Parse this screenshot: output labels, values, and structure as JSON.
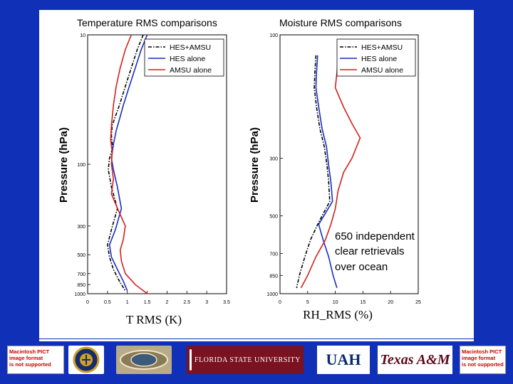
{
  "left_chart": {
    "type": "line",
    "title": "Temperature RMS comparisons",
    "xlabel": "T  RMS (K)",
    "ylabel": "Pressure (hPa)",
    "xlim": [
      0,
      3.5
    ],
    "ylim": [
      10,
      1000
    ],
    "y_scale": "log",
    "x_ticks": [
      "0",
      "0.5",
      "1",
      "1.5",
      "2",
      "2.5",
      "3",
      "3.5"
    ],
    "y_ticks": [
      "10",
      "100",
      "300",
      "500",
      "700",
      "850",
      "1000"
    ],
    "y_tick_values": [
      10,
      100,
      300,
      500,
      700,
      850,
      1000
    ],
    "legend_position": "top-right",
    "series": [
      {
        "name": "HES+AMSU",
        "color": "#000000",
        "dash": "dashdot",
        "x": [
          1.4,
          1.25,
          1.1,
          0.95,
          0.8,
          0.62,
          0.6,
          0.63,
          0.55,
          0.52,
          0.6,
          0.75,
          0.6,
          0.5,
          0.55,
          0.65,
          0.8,
          0.95
        ],
        "p": [
          10,
          13,
          18,
          25,
          35,
          50,
          60,
          75,
          90,
          110,
          150,
          220,
          320,
          420,
          520,
          650,
          800,
          950
        ]
      },
      {
        "name": "HES alone",
        "color": "#1a2fc0",
        "dash": "solid",
        "x": [
          1.5,
          1.35,
          1.2,
          1.05,
          0.9,
          0.8,
          0.72,
          0.65,
          0.6,
          0.65,
          0.75,
          0.85,
          0.7,
          0.55,
          0.6,
          0.75,
          0.9,
          1.0
        ],
        "p": [
          10,
          13,
          18,
          25,
          35,
          45,
          55,
          70,
          90,
          110,
          150,
          220,
          320,
          420,
          520,
          650,
          800,
          950
        ]
      },
      {
        "name": "AMSU alone",
        "color": "#d42020",
        "dash": "solid",
        "x": [
          1.1,
          0.95,
          0.82,
          0.72,
          0.65,
          0.6,
          0.58,
          0.62,
          0.6,
          0.65,
          0.6,
          0.78,
          0.95,
          0.9,
          0.82,
          0.85,
          0.95,
          1.2,
          1.5
        ],
        "p": [
          10,
          13,
          18,
          25,
          35,
          50,
          65,
          80,
          100,
          130,
          170,
          230,
          300,
          380,
          460,
          560,
          700,
          850,
          1000
        ]
      }
    ]
  },
  "right_chart": {
    "type": "line",
    "title": "Moisture RMS comparisons",
    "xlabel": "RH_RMS (%)",
    "ylabel": "Pressure (hPa)",
    "xlim": [
      0,
      25
    ],
    "ylim": [
      100,
      1000
    ],
    "y_scale": "log",
    "x_ticks": [
      "0",
      "5",
      "10",
      "15",
      "20",
      "25"
    ],
    "y_ticks": [
      "100",
      "300",
      "500",
      "700",
      "850",
      "1000"
    ],
    "y_tick_values": [
      100,
      300,
      500,
      700,
      850,
      1000
    ],
    "legend_position": "top-right",
    "annotation": [
      "650 independent",
      "clear retrievals",
      "over ocean"
    ],
    "series": [
      {
        "name": "HES+AMSU",
        "color": "#000000",
        "dash": "dashdot",
        "x": [
          6.5,
          6.3,
          6.2,
          6.6,
          7.2,
          8.0,
          8.5,
          8.8,
          9.0,
          7.0,
          5.5,
          4.5,
          3.5,
          3.0
        ],
        "p": [
          120,
          140,
          160,
          190,
          230,
          270,
          320,
          370,
          440,
          530,
          620,
          720,
          850,
          950
        ]
      },
      {
        "name": "HES alone",
        "color": "#1a2fc0",
        "dash": "solid",
        "x": [
          6.8,
          6.6,
          6.5,
          7.0,
          7.6,
          8.4,
          8.8,
          9.2,
          9.5,
          7.0,
          7.8,
          8.8,
          9.6,
          10.3
        ],
        "p": [
          120,
          140,
          160,
          190,
          230,
          270,
          320,
          370,
          440,
          540,
          620,
          720,
          850,
          950
        ]
      },
      {
        "name": "AMSU alone",
        "color": "#d42020",
        "dash": "solid",
        "x": [
          10.5,
          10.3,
          10.0,
          11.5,
          13.0,
          14.5,
          13.0,
          11.5,
          10.5,
          10.0,
          9.2,
          8.2,
          6.5,
          5.0,
          3.8
        ],
        "p": [
          120,
          140,
          160,
          190,
          220,
          250,
          300,
          340,
          400,
          470,
          540,
          620,
          720,
          850,
          950
        ]
      }
    ]
  },
  "logos": {
    "pict_left": [
      "Macintosh PICT",
      "image format",
      "is not supported"
    ],
    "pict_right": [
      "Macintosh PICT",
      "image format",
      "is not supported"
    ],
    "fsu": "FLORIDA STATE UNIVERSITY",
    "uah": "UAH",
    "tam": "Texas A&M"
  }
}
